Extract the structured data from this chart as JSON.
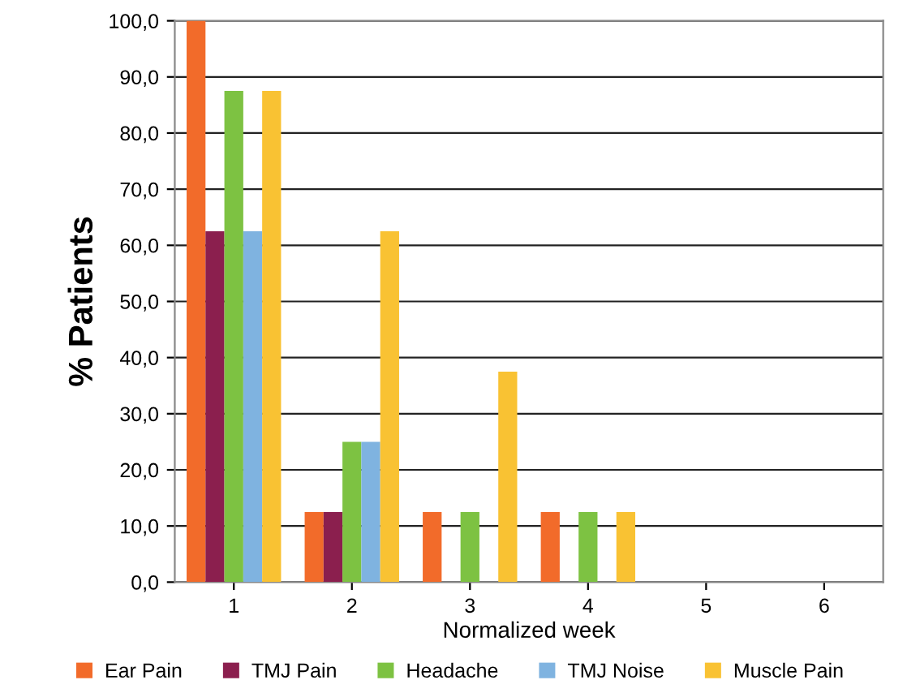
{
  "chart_data": {
    "type": "bar",
    "xlabel": "Normalized week",
    "ylabel": "% Patients",
    "categories": [
      "1",
      "2",
      "3",
      "4",
      "5",
      "6"
    ],
    "series": [
      {
        "name": "Ear Pain",
        "color": "#f26b2a",
        "values": [
          100,
          12.5,
          12.5,
          12.5,
          0,
          0
        ]
      },
      {
        "name": "TMJ Pain",
        "color": "#8b1f4e",
        "values": [
          62.5,
          12.5,
          0,
          0,
          0,
          0
        ]
      },
      {
        "name": "Headache",
        "color": "#7dc242",
        "values": [
          87.5,
          25,
          12.5,
          12.5,
          0,
          0
        ]
      },
      {
        "name": "TMJ Noise",
        "color": "#7fb3e0",
        "values": [
          62.5,
          25,
          0,
          0,
          0,
          0
        ]
      },
      {
        "name": "Muscle Pain",
        "color": "#f9c233",
        "values": [
          87.5,
          62.5,
          37.5,
          12.5,
          0,
          0
        ]
      }
    ],
    "ylim": [
      0,
      100
    ],
    "yticks": [
      {
        "value": 0,
        "label": "0,0"
      },
      {
        "value": 10,
        "label": "10,0"
      },
      {
        "value": 20,
        "label": "20,0"
      },
      {
        "value": 30,
        "label": "30,0"
      },
      {
        "value": 40,
        "label": "40,0"
      },
      {
        "value": 50,
        "label": "50,0"
      },
      {
        "value": 60,
        "label": "60,0"
      },
      {
        "value": 70,
        "label": "70,0"
      },
      {
        "value": 80,
        "label": "80,0"
      },
      {
        "value": 90,
        "label": "90,0"
      },
      {
        "value": 100,
        "label": "100,0"
      }
    ],
    "grid": "y",
    "legend": "bottom"
  }
}
